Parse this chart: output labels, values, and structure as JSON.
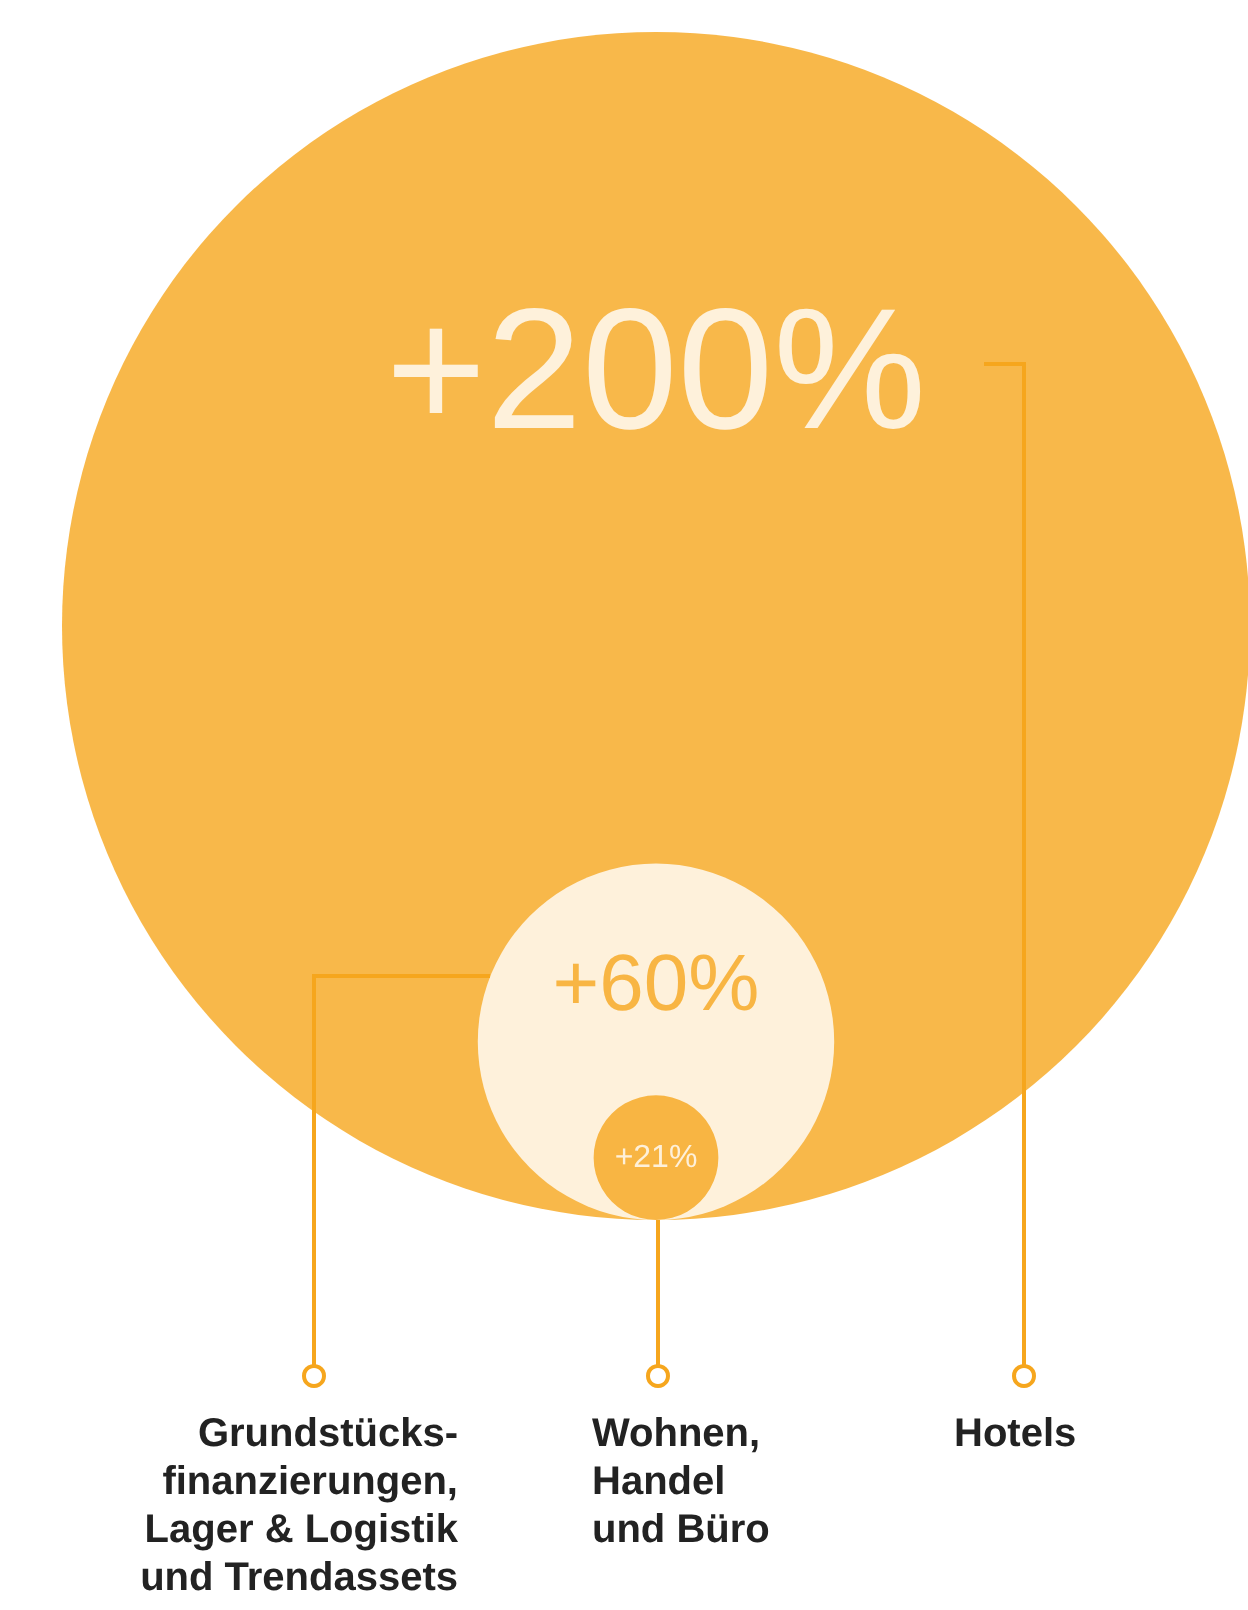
{
  "chart_data": {
    "type": "other",
    "categories": [
      "Hotels",
      "Grundstücks-\nfinanzierungen,\nLager & Logistik\nund Trendassets",
      "Wohnen,\nHandel\nund Büro"
    ],
    "values": [
      200,
      60,
      21
    ],
    "value_labels": [
      "+200%",
      "+60%",
      "+21%"
    ],
    "colors": [
      "#f6a61d",
      "#ffffff",
      "#f6a61d"
    ]
  }
}
